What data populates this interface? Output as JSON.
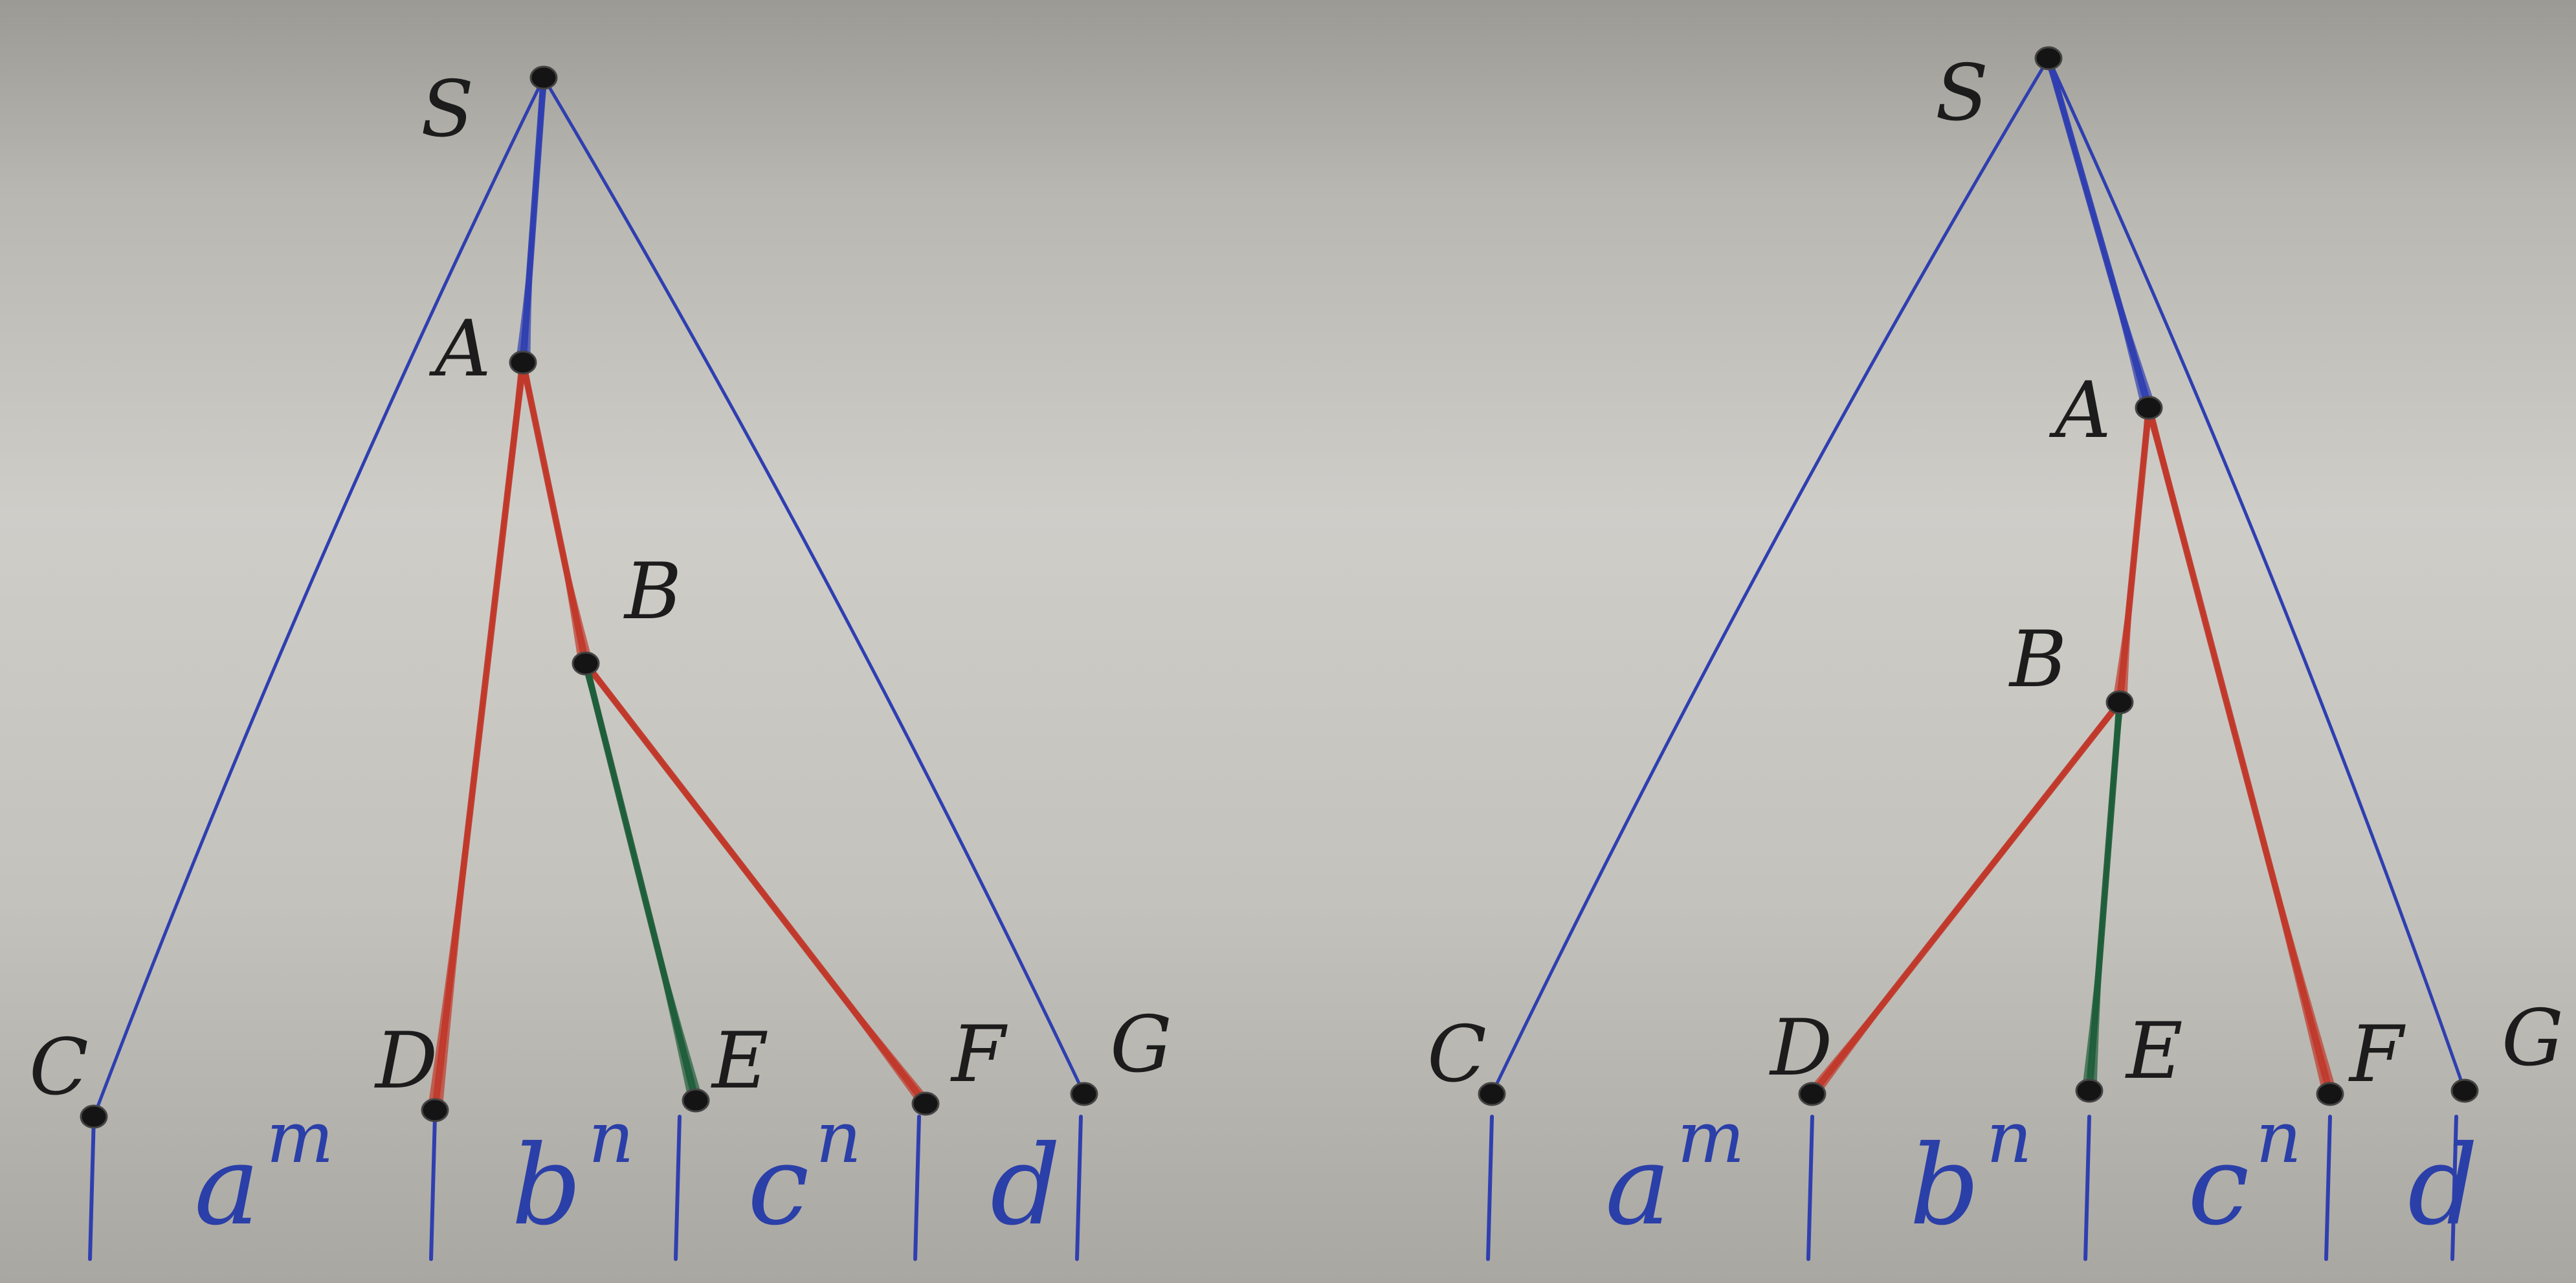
{
  "colors": {
    "blue": "#2f3fb0",
    "red": "#c0392b",
    "green": "#1f5e3a",
    "node": "#141414",
    "label": "#1c1c1c"
  },
  "diagrams": [
    {
      "id": "left",
      "labels": {
        "S": "S",
        "A": "A",
        "B": "B",
        "C": "C",
        "D": "D",
        "E": "E",
        "F": "F",
        "G": "G"
      },
      "segments": [
        {
          "base": "a",
          "exp": "m"
        },
        {
          "base": "b",
          "exp": "n"
        },
        {
          "base": "c",
          "exp": "n"
        },
        {
          "base": "d",
          "exp": ""
        }
      ],
      "edges": [
        {
          "from": "S",
          "to": "A",
          "color": "blue"
        },
        {
          "from": "S",
          "to": "C",
          "color": "blue"
        },
        {
          "from": "S",
          "to": "G",
          "color": "blue"
        },
        {
          "from": "A",
          "to": "D",
          "color": "red"
        },
        {
          "from": "A",
          "to": "B",
          "color": "red"
        },
        {
          "from": "B",
          "to": "F",
          "color": "red"
        },
        {
          "from": "B",
          "to": "E",
          "color": "green"
        }
      ]
    },
    {
      "id": "right",
      "labels": {
        "S": "S",
        "A": "A",
        "B": "B",
        "C": "C",
        "D": "D",
        "E": "E",
        "F": "F",
        "G": "G"
      },
      "segments": [
        {
          "base": "a",
          "exp": "m"
        },
        {
          "base": "b",
          "exp": "n"
        },
        {
          "base": "c",
          "exp": "n"
        },
        {
          "base": "d",
          "exp": ""
        }
      ],
      "edges": [
        {
          "from": "S",
          "to": "A",
          "color": "blue"
        },
        {
          "from": "S",
          "to": "C",
          "color": "blue"
        },
        {
          "from": "S",
          "to": "G",
          "color": "blue"
        },
        {
          "from": "A",
          "to": "B",
          "color": "red"
        },
        {
          "from": "A",
          "to": "F",
          "color": "red"
        },
        {
          "from": "B",
          "to": "D",
          "color": "red"
        },
        {
          "from": "B",
          "to": "E",
          "color": "green"
        }
      ]
    }
  ]
}
